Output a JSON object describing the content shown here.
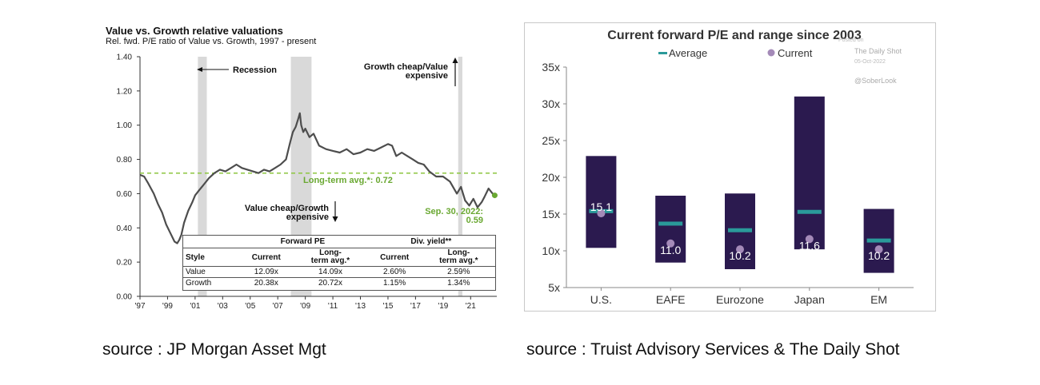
{
  "left_chart": {
    "title": "Value vs. Growth relative valuations",
    "subtitle": "Rel. fwd. P/E ratio of Value vs. Growth, 1997 - present",
    "annotations": {
      "recession": "Recession",
      "growth_cheap_1": "Growth cheap/Value",
      "growth_cheap_2": "expensive",
      "value_cheap_1": "Value cheap/Growth",
      "value_cheap_2": "expensive",
      "long_term": "Long-term avg.*:  0.72",
      "latest_date": "Sep. 30, 2022:",
      "latest_value": "0.59"
    },
    "table": {
      "group_headers": [
        "Forward PE",
        "Div. yield**"
      ],
      "columns": [
        "Style",
        "Current",
        "Long-\nterm avg.*",
        "Current",
        "Long-\nterm avg.*"
      ],
      "rows": [
        [
          "Value",
          "12.09x",
          "14.09x",
          "2.60%",
          "2.59%"
        ],
        [
          "Growth",
          "20.38x",
          "20.72x",
          "1.15%",
          "1.34%"
        ]
      ]
    }
  },
  "right_chart": {
    "title": "Current forward  P/E and range since 2003",
    "legend": {
      "average": "Average",
      "current": "Current"
    },
    "watermark": {
      "posted": "Posted on",
      "name": "The Daily Shot",
      "date": "05-Oct-2022",
      "handle": "@SoberLook"
    }
  },
  "sources": {
    "left": "source : JP Morgan Asset Mgt",
    "right": "source :  Truist Advisory Services & The Daily Shot"
  },
  "colors": {
    "line": "#4d4d4d",
    "recession": "#d9d9d9",
    "avg_line": "#8dc63f",
    "bar": "#2b1a4f",
    "average_marker": "#2a9a9a",
    "current_marker": "#a48ab8"
  },
  "chart_data": [
    {
      "type": "line",
      "title": "Value vs. Growth relative valuations",
      "subtitle": "Rel. fwd. P/E ratio of Value vs. Growth, 1997 - present",
      "xlabel": "",
      "ylabel": "",
      "x_ticks": [
        "'97",
        "'99",
        "'01",
        "'03",
        "'05",
        "'07",
        "'09",
        "'11",
        "'13",
        "'15",
        "'17",
        "'19",
        "'21"
      ],
      "y_ticks": [
        "0.00",
        "0.20",
        "0.40",
        "0.60",
        "0.80",
        "1.00",
        "1.20",
        "1.40"
      ],
      "xlim": [
        1997,
        2022.9
      ],
      "ylim": [
        0,
        1.4
      ],
      "long_term_avg": 0.72,
      "recessions": [
        [
          2001.2,
          2001.85
        ],
        [
          2007.95,
          2009.45
        ],
        [
          2020.1,
          2020.4
        ]
      ],
      "latest": {
        "x": 2022.75,
        "y": 0.59
      },
      "x": [
        1997.0,
        1997.3,
        1997.6,
        1998.0,
        1998.3,
        1998.6,
        1998.9,
        1999.2,
        1999.5,
        1999.7,
        1999.85,
        2000.0,
        2000.2,
        2000.5,
        2000.8,
        2001.0,
        2001.3,
        2001.6,
        2002.0,
        2002.4,
        2002.8,
        2003.2,
        2003.6,
        2004.0,
        2004.4,
        2004.8,
        2005.2,
        2005.6,
        2006.0,
        2006.4,
        2006.8,
        2007.2,
        2007.6,
        2007.9,
        2008.1,
        2008.3,
        2008.5,
        2008.6,
        2008.7,
        2008.85,
        2009.0,
        2009.3,
        2009.6,
        2010.0,
        2010.5,
        2011.0,
        2011.5,
        2012.0,
        2012.5,
        2013.0,
        2013.5,
        2014.0,
        2014.5,
        2015.0,
        2015.3,
        2015.6,
        2016.0,
        2016.4,
        2016.8,
        2017.2,
        2017.6,
        2018.0,
        2018.5,
        2019.0,
        2019.5,
        2020.0,
        2020.3,
        2020.6,
        2020.9,
        2021.2,
        2021.5,
        2021.8,
        2022.0,
        2022.3,
        2022.6,
        2022.75
      ],
      "y": [
        0.71,
        0.7,
        0.66,
        0.6,
        0.54,
        0.49,
        0.42,
        0.37,
        0.32,
        0.31,
        0.33,
        0.36,
        0.43,
        0.5,
        0.55,
        0.59,
        0.62,
        0.65,
        0.69,
        0.72,
        0.74,
        0.73,
        0.75,
        0.77,
        0.75,
        0.74,
        0.73,
        0.72,
        0.74,
        0.73,
        0.75,
        0.77,
        0.8,
        0.9,
        0.96,
        0.99,
        1.04,
        1.07,
        1.0,
        0.96,
        0.98,
        0.93,
        0.95,
        0.88,
        0.86,
        0.85,
        0.84,
        0.86,
        0.83,
        0.84,
        0.86,
        0.85,
        0.87,
        0.89,
        0.88,
        0.82,
        0.84,
        0.82,
        0.8,
        0.78,
        0.77,
        0.73,
        0.7,
        0.7,
        0.67,
        0.6,
        0.64,
        0.56,
        0.53,
        0.57,
        0.52,
        0.55,
        0.58,
        0.63,
        0.6,
        0.59
      ]
    },
    {
      "type": "bar",
      "title": "Current forward  P/E and range since 2003",
      "categories": [
        "U.S.",
        "EAFE",
        "Eurozone",
        "Japan",
        "EM"
      ],
      "series": [
        {
          "name": "Range low",
          "values": [
            10.4,
            8.4,
            7.5,
            10.2,
            7.0
          ]
        },
        {
          "name": "Range high",
          "values": [
            22.9,
            17.5,
            17.8,
            31.0,
            15.7
          ]
        },
        {
          "name": "Average",
          "values": [
            15.4,
            13.7,
            12.8,
            15.3,
            11.4
          ]
        },
        {
          "name": "Current",
          "values": [
            15.1,
            11.0,
            10.2,
            11.6,
            10.2
          ]
        }
      ],
      "value_labels": [
        "15.1",
        "11.0",
        "10.2",
        "11.6",
        "10.2"
      ],
      "y_ticks": [
        "5x",
        "10x",
        "15x",
        "20x",
        "25x",
        "30x",
        "35x"
      ],
      "ylim": [
        5,
        35
      ],
      "xlabel": "",
      "ylabel": "",
      "legend_position": "top"
    }
  ]
}
